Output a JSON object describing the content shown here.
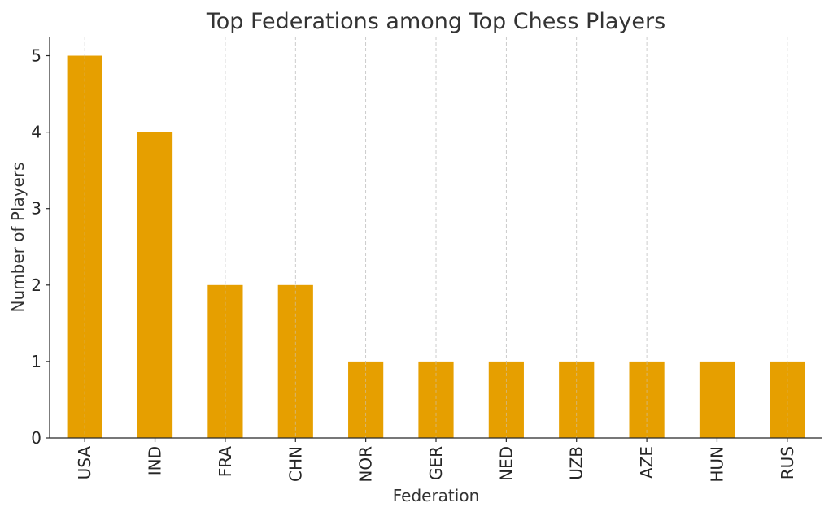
{
  "chart_data": {
    "type": "bar",
    "title": "Top Federations among Top Chess Players",
    "xlabel": "Federation",
    "ylabel": "Number of Players",
    "categories": [
      "USA",
      "IND",
      "FRA",
      "CHN",
      "NOR",
      "GER",
      "NED",
      "UZB",
      "AZE",
      "HUN",
      "RUS"
    ],
    "values": [
      5,
      4,
      2,
      2,
      1,
      1,
      1,
      1,
      1,
      1,
      1
    ],
    "ylim": [
      0,
      5.25
    ],
    "yticks": [
      0,
      1,
      2,
      3,
      4,
      5
    ],
    "bar_color": "#E69F00",
    "grid": "vertical dashed",
    "legend": "none",
    "x_tick_rotation": "vertical"
  }
}
